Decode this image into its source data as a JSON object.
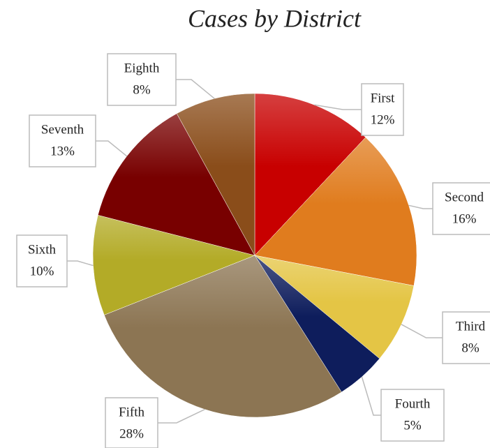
{
  "chart_data": {
    "type": "pie",
    "title": "Cases by District",
    "categories": [
      "First",
      "Second",
      "Third",
      "Fourth",
      "Fifth",
      "Sixth",
      "Seventh",
      "Eighth"
    ],
    "values": [
      12,
      16,
      8,
      5,
      28,
      10,
      13,
      8
    ],
    "value_labels": [
      "12%",
      "16%",
      "8%",
      "5%",
      "28%",
      "10%",
      "13%",
      "8%"
    ],
    "colors": [
      "#c80000",
      "#e07c1e",
      "#e4c545",
      "#0e1d5c",
      "#8c7553",
      "#b3ab27",
      "#780000",
      "#8a4d1a"
    ]
  }
}
